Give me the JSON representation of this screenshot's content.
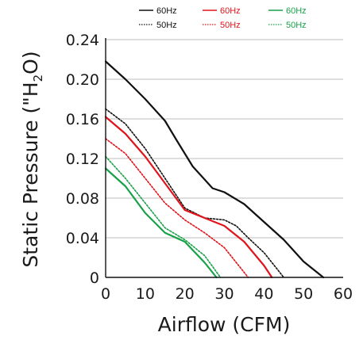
{
  "chart_data": {
    "type": "line",
    "title": "",
    "xlabel": "Airflow (CFM)",
    "ylabel_parts": {
      "before": "Static Pressure (\"H",
      "sub": "2",
      "after": "O)"
    },
    "xlim": [
      0,
      60
    ],
    "ylim": [
      0,
      0.24
    ],
    "x_ticks": [
      "0",
      "10",
      "20",
      "30",
      "40",
      "50",
      "60"
    ],
    "y_ticks": [
      "0",
      "0.04",
      "0.08",
      "0.12",
      "0.16",
      "0.20",
      "0.24"
    ],
    "grid": "horizontal",
    "legend_position": "top",
    "colors": {
      "black": "#111111",
      "red": "#e0141b",
      "green": "#19a14a"
    },
    "series": [
      {
        "name": "60Hz",
        "color": "black",
        "dash": false,
        "x": [
          0,
          5,
          10,
          15,
          18,
          22,
          27,
          30,
          35,
          40,
          45,
          50,
          55
        ],
        "y": [
          0.218,
          0.2,
          0.18,
          0.158,
          0.138,
          0.112,
          0.09,
          0.086,
          0.074,
          0.056,
          0.038,
          0.016,
          0
        ]
      },
      {
        "name": "50Hz",
        "color": "black",
        "dash": true,
        "x": [
          0,
          5,
          10,
          15,
          20,
          25,
          30,
          33,
          36,
          40,
          43,
          45
        ],
        "y": [
          0.17,
          0.155,
          0.13,
          0.1,
          0.07,
          0.06,
          0.058,
          0.052,
          0.04,
          0.025,
          0.01,
          0
        ]
      },
      {
        "name": "60Hz",
        "color": "red",
        "dash": false,
        "x": [
          0,
          5,
          10,
          15,
          20,
          25,
          30,
          35,
          40,
          42
        ],
        "y": [
          0.162,
          0.145,
          0.122,
          0.095,
          0.068,
          0.06,
          0.052,
          0.036,
          0.012,
          0
        ]
      },
      {
        "name": "50Hz",
        "color": "red",
        "dash": true,
        "x": [
          0,
          5,
          10,
          15,
          20,
          25,
          30,
          34,
          36
        ],
        "y": [
          0.14,
          0.125,
          0.1,
          0.075,
          0.058,
          0.045,
          0.03,
          0.01,
          0
        ]
      },
      {
        "name": "60Hz",
        "color": "green",
        "dash": false,
        "x": [
          0,
          5,
          10,
          15,
          20,
          25,
          28
        ],
        "y": [
          0.11,
          0.092,
          0.065,
          0.045,
          0.036,
          0.015,
          0
        ]
      },
      {
        "name": "50Hz",
        "color": "green",
        "dash": true,
        "x": [
          0,
          5,
          10,
          15,
          20,
          25,
          29
        ],
        "y": [
          0.122,
          0.1,
          0.075,
          0.05,
          0.038,
          0.022,
          0
        ]
      }
    ]
  }
}
